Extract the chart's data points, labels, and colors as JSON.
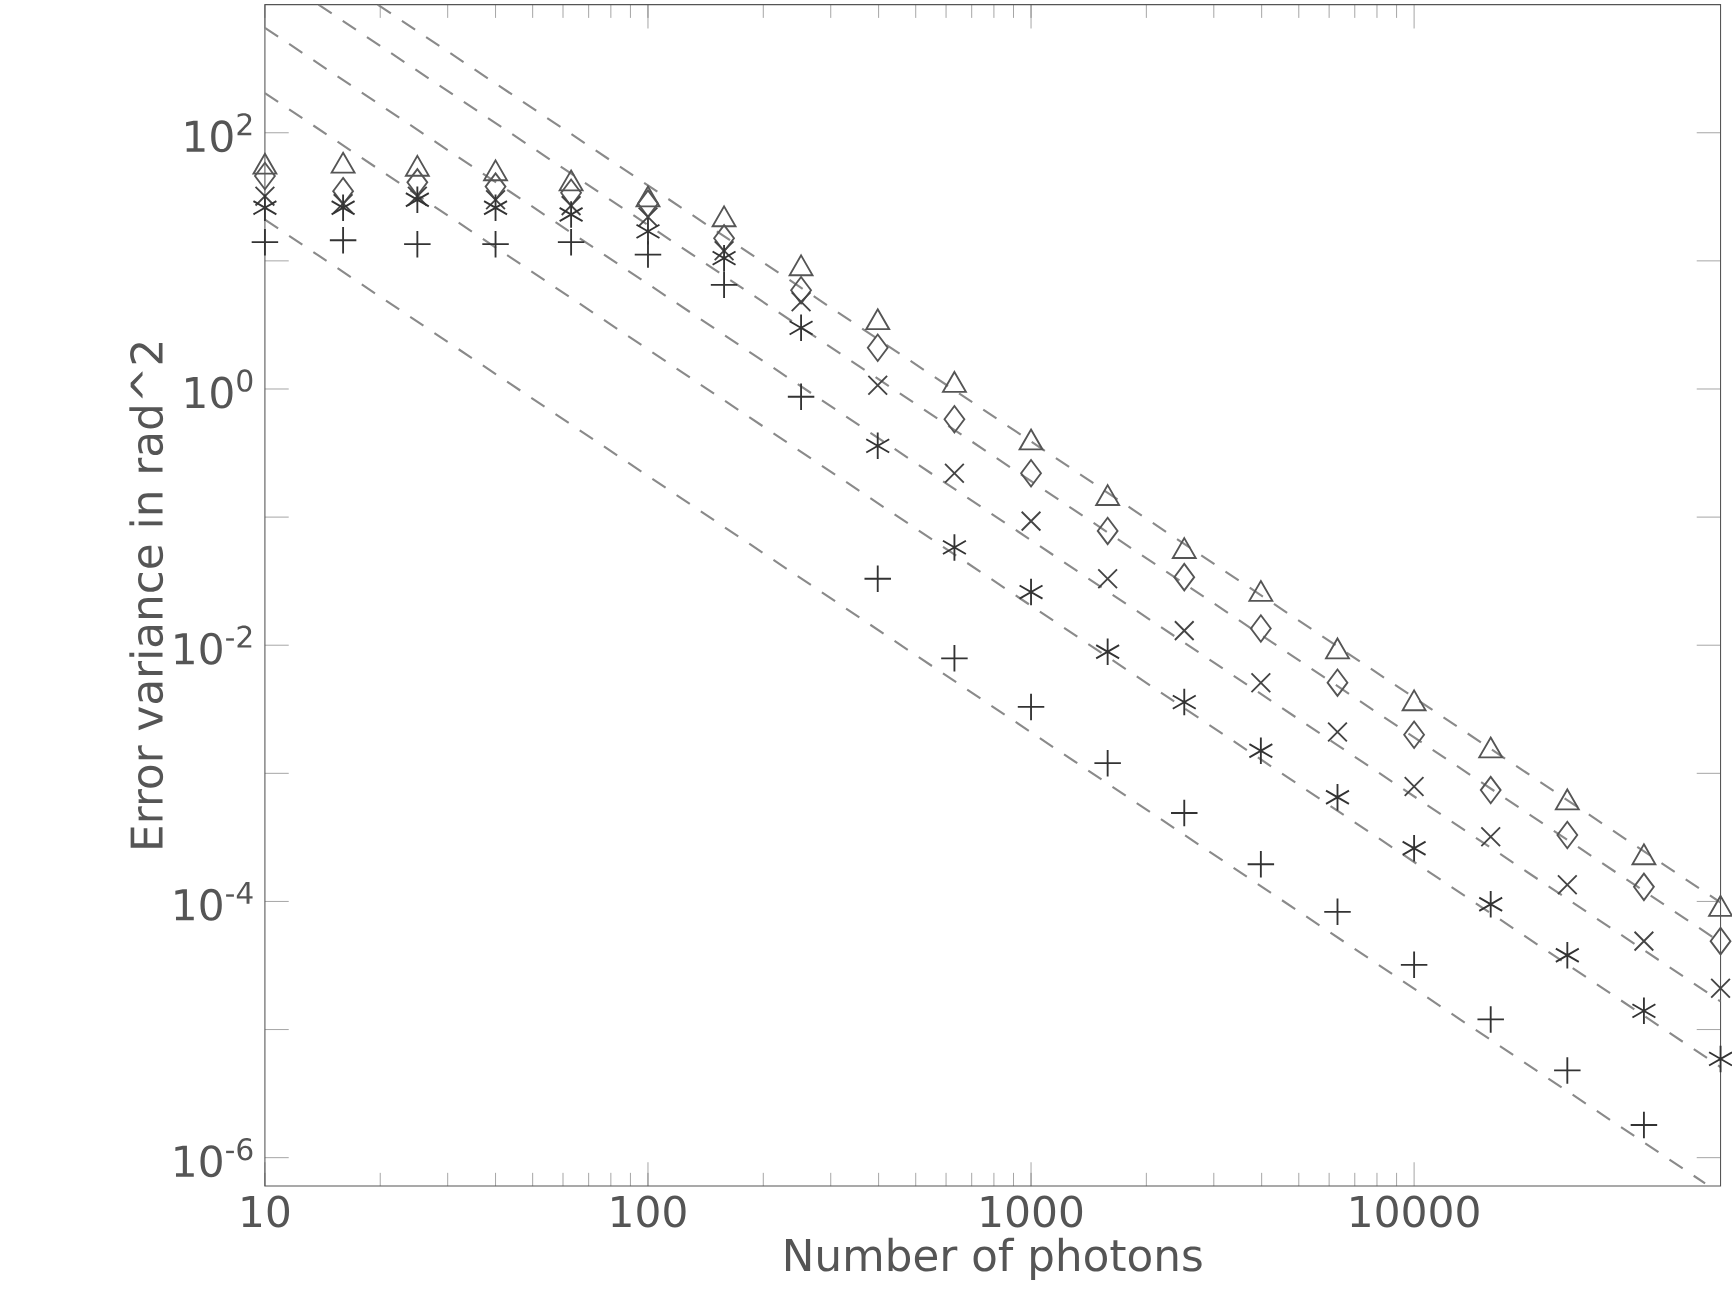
{
  "chart_data": {
    "type": "scatter",
    "xlabel": "Number of photons",
    "ylabel": "Error variance in rad^2",
    "log": "xy",
    "xlim": [
      10,
      63096
    ],
    "ylim": [
      6e-07,
      1000
    ],
    "xticks": [
      10,
      100,
      1000,
      10000
    ],
    "yticks": [
      {
        "value": 1e-06,
        "label": "10$^{-6}$"
      },
      {
        "value": 1e-05,
        "label": null
      },
      {
        "value": 0.0001,
        "label": "10$^{-4}$"
      },
      {
        "value": 0.001,
        "label": null
      },
      {
        "value": 0.01,
        "label": "10$^{-2}$"
      },
      {
        "value": 0.1,
        "label": null
      },
      {
        "value": 1,
        "label": "10$^{0}$"
      },
      {
        "value": 10,
        "label": null
      },
      {
        "value": 100,
        "label": "10$^{2}$"
      }
    ],
    "x": [
      10,
      16,
      25,
      40,
      63,
      100,
      158,
      251,
      398,
      631,
      1000,
      1585,
      2512,
      3981,
      6310,
      10000,
      15849,
      25119,
      39811,
      63096
    ],
    "series": [
      {
        "type": "line",
        "line_style": "dashed",
        "marker": "none",
        "color": "#8a8a8a",
        "x": [
          19.7,
          63096
        ],
        "values": [
          1000,
          9.8e-05
        ]
      },
      {
        "type": "line",
        "line_style": "dashed",
        "marker": "none",
        "color": "#8a8a8a",
        "x": [
          13.8,
          63096
        ],
        "values": [
          1000,
          4.8e-05
        ]
      },
      {
        "type": "line",
        "line_style": "dashed",
        "marker": "none",
        "color": "#8a8a8a",
        "x": [
          10,
          63096
        ],
        "values": [
          660,
          1.66e-05
        ]
      },
      {
        "type": "line",
        "line_style": "dashed",
        "marker": "none",
        "color": "#8a8a8a",
        "x": [
          10,
          63096
        ],
        "values": [
          204,
          5.1e-06
        ]
      },
      {
        "type": "line",
        "line_style": "dashed",
        "marker": "none",
        "color": "#8a8a8a",
        "x": [
          10,
          57500
        ],
        "values": [
          21,
          6.3e-07
        ]
      },
      {
        "marker": "triangle",
        "color": "#555555",
        "values": [
          54,
          55,
          52,
          48,
          40,
          30,
          21,
          8.7,
          3.3,
          1.07,
          0.38,
          0.14,
          0.054,
          0.025,
          0.0089,
          0.0035,
          0.0015,
          0.00059,
          0.00022,
          8.7e-05
        ]
      },
      {
        "marker": "diamond",
        "color": "#555555",
        "values": [
          46,
          35,
          41,
          38,
          34,
          28,
          15,
          5.9,
          2.1,
          0.58,
          0.22,
          0.078,
          0.034,
          0.0135,
          0.0051,
          0.002,
          0.00074,
          0.00033,
          0.00013,
          4.9e-05
        ]
      },
      {
        "marker": "x",
        "color": "#444444",
        "values": [
          32,
          28,
          32,
          30,
          27,
          22,
          12,
          4.8,
          1.07,
          0.22,
          0.093,
          0.033,
          0.013,
          0.0051,
          0.0021,
          0.00079,
          0.00032,
          0.000135,
          4.9e-05,
          2.1e-05
        ]
      },
      {
        "marker": "cross",
        "color": "#333333",
        "values": [
          26,
          26,
          30,
          26,
          23,
          17,
          10.5,
          3.0,
          0.36,
          0.058,
          0.026,
          0.0089,
          0.0036,
          0.0015,
          0.00065,
          0.00026,
          9.5e-05,
          3.8e-05,
          1.4e-05,
          5.9e-06
        ]
      },
      {
        "marker": "plus",
        "color": "#333333",
        "values": [
          14,
          14.5,
          13.5,
          13.5,
          14,
          11.2,
          6.5,
          0.87,
          0.033,
          0.0079,
          0.0033,
          0.0012,
          0.00049,
          0.000195,
          8.3e-05,
          3.2e-05,
          1.2e-05,
          4.8e-06,
          1.8e-06,
          null
        ]
      }
    ]
  }
}
